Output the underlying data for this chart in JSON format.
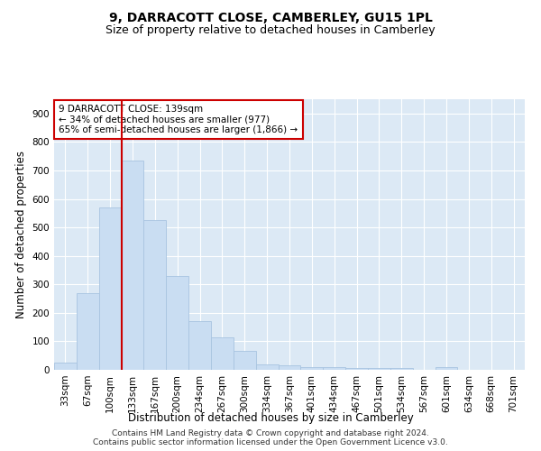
{
  "title": "9, DARRACOTT CLOSE, CAMBERLEY, GU15 1PL",
  "subtitle": "Size of property relative to detached houses in Camberley",
  "xlabel": "Distribution of detached houses by size in Camberley",
  "ylabel": "Number of detached properties",
  "bar_labels": [
    "33sqm",
    "67sqm",
    "100sqm",
    "133sqm",
    "167sqm",
    "200sqm",
    "234sqm",
    "267sqm",
    "300sqm",
    "334sqm",
    "367sqm",
    "401sqm",
    "434sqm",
    "467sqm",
    "501sqm",
    "534sqm",
    "567sqm",
    "601sqm",
    "634sqm",
    "668sqm",
    "701sqm"
  ],
  "bar_values": [
    25,
    270,
    570,
    735,
    525,
    330,
    170,
    115,
    65,
    20,
    15,
    10,
    10,
    5,
    5,
    5,
    0,
    10,
    0,
    0,
    0
  ],
  "bar_color": "#c9ddf2",
  "bar_edge_color": "#a8c4e0",
  "vline_color": "#cc0000",
  "vline_index": 3.5,
  "annotation_text": "9 DARRACOTT CLOSE: 139sqm\n← 34% of detached houses are smaller (977)\n65% of semi-detached houses are larger (1,866) →",
  "annotation_box_color": "#ffffff",
  "annotation_box_edge": "#cc0000",
  "ylim": [
    0,
    950
  ],
  "yticks": [
    0,
    100,
    200,
    300,
    400,
    500,
    600,
    700,
    800,
    900
  ],
  "footer_line1": "Contains HM Land Registry data © Crown copyright and database right 2024.",
  "footer_line2": "Contains public sector information licensed under the Open Government Licence v3.0.",
  "plot_bg_color": "#dce9f5",
  "title_fontsize": 10,
  "subtitle_fontsize": 9,
  "axis_label_fontsize": 8.5,
  "tick_fontsize": 7.5,
  "annotation_fontsize": 7.5,
  "footer_fontsize": 6.5
}
